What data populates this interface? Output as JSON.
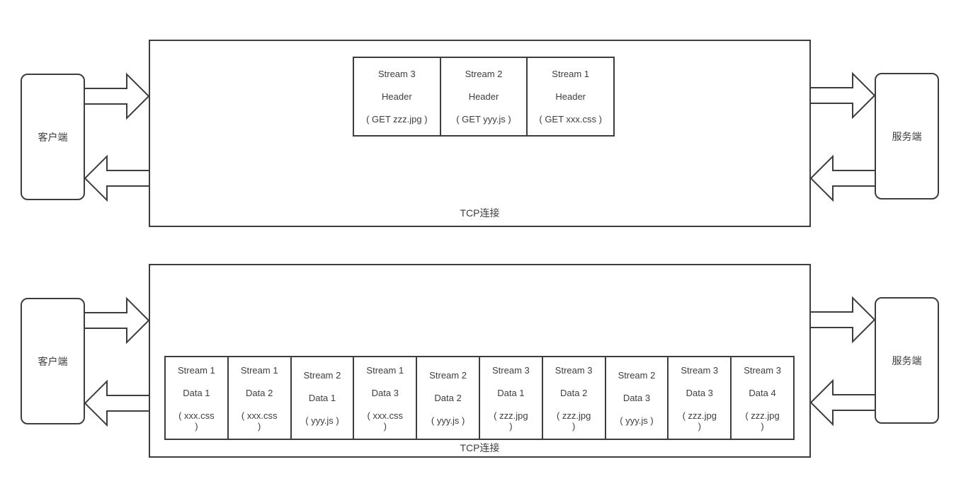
{
  "colors": {
    "line": "#3d3d3d",
    "text": "#3d3d3d",
    "background": "#ffffff"
  },
  "top_diagram": {
    "client_label": "客户端",
    "server_label": "服务端",
    "tcp_label": "TCP连接",
    "frames": [
      {
        "paragraphs": [
          [
            "Stream 3"
          ],
          [
            "Header"
          ],
          [
            "( GET zzz.jpg )"
          ]
        ]
      },
      {
        "paragraphs": [
          [
            "Stream 2"
          ],
          [
            "Header"
          ],
          [
            "( GET yyy.js )"
          ]
        ]
      },
      {
        "paragraphs": [
          [
            "Stream 1"
          ],
          [
            "Header"
          ],
          [
            "( GET xxx.css )"
          ]
        ]
      }
    ]
  },
  "bottom_diagram": {
    "client_label": "客户端",
    "server_label": "服务端",
    "tcp_label": "TCP连接",
    "frames": [
      {
        "paragraphs": [
          [
            "Stream 1"
          ],
          [
            "Data 1"
          ],
          [
            "( xxx.css",
            ")"
          ]
        ]
      },
      {
        "paragraphs": [
          [
            "Stream 1"
          ],
          [
            "Data 2"
          ],
          [
            "( xxx.css",
            ")"
          ]
        ]
      },
      {
        "paragraphs": [
          [
            "Stream 2"
          ],
          [
            "Data 1"
          ],
          [
            "( yyy.js )"
          ]
        ]
      },
      {
        "paragraphs": [
          [
            "Stream 1"
          ],
          [
            "Data 3"
          ],
          [
            "( xxx.css",
            ")"
          ]
        ]
      },
      {
        "paragraphs": [
          [
            "Stream 2"
          ],
          [
            "Data 2"
          ],
          [
            "( yyy.js )"
          ]
        ]
      },
      {
        "paragraphs": [
          [
            "Stream 3"
          ],
          [
            "Data 1"
          ],
          [
            "( zzz.jpg",
            ")"
          ]
        ]
      },
      {
        "paragraphs": [
          [
            "Stream 3"
          ],
          [
            "Data 2"
          ],
          [
            "( zzz.jpg",
            ")"
          ]
        ]
      },
      {
        "paragraphs": [
          [
            "Stream 2"
          ],
          [
            "Data 3"
          ],
          [
            "( yyy.js )"
          ]
        ]
      },
      {
        "paragraphs": [
          [
            "Stream 3"
          ],
          [
            "Data 3"
          ],
          [
            "( zzz.jpg",
            ")"
          ]
        ]
      },
      {
        "paragraphs": [
          [
            "Stream 3"
          ],
          [
            "Data 4"
          ],
          [
            "( zzz.jpg",
            ")"
          ]
        ]
      }
    ]
  },
  "icons": {
    "send_arrow": "block-arrow-right",
    "receive_arrow": "block-arrow-left"
  }
}
